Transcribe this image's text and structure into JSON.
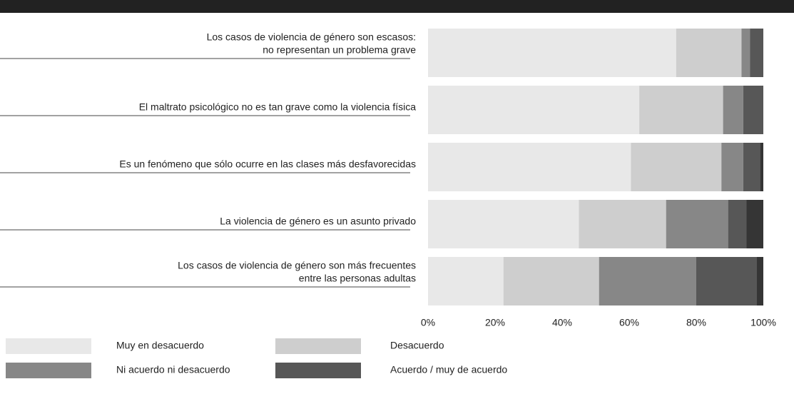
{
  "chart_data": {
    "type": "stacked_bar_horizontal",
    "categories": [
      [
        "Los casos de violencia de género son escasos:",
        "no representan un problema grave"
      ],
      [
        "El maltrato psicológico no es tan grave como la violencia física"
      ],
      [
        "Es un fenómeno que sólo ocurre en las clases más desfavorecidas"
      ],
      [
        "La violencia de género es un asunto privado"
      ],
      [
        "Los casos de violencia de género son más frecuentes",
        "entre las personas adultas"
      ]
    ],
    "series": [
      {
        "name": "Muy en desacuerdo",
        "color": "#e8e8e8",
        "values": [
          74,
          63,
          60.5,
          45,
          22.5
        ]
      },
      {
        "name": "Desacuerdo",
        "color": "#cecece",
        "values": [
          19.5,
          25,
          27,
          26,
          28.5
        ]
      },
      {
        "name": "Ni acuerdo ni desacuerdo",
        "color": "#878787",
        "values": [
          2.5,
          6,
          6.5,
          18.5,
          29
        ]
      },
      {
        "name": "Acuerdo / muy de acuerdo",
        "color": "#575757",
        "values": [
          4,
          6,
          5,
          5.5,
          18
        ]
      },
      {
        "color": "#353535",
        "values": [
          0,
          0,
          1,
          5,
          2
        ]
      }
    ],
    "xlim": [
      0,
      100
    ],
    "xticks": [
      {
        "value": 0,
        "label": "0%"
      },
      {
        "value": 20,
        "label": "20%"
      },
      {
        "value": 40,
        "label": "40%"
      },
      {
        "value": 60,
        "label": "60%"
      },
      {
        "value": 80,
        "label": "80%"
      },
      {
        "value": 100,
        "label": "100%"
      }
    ]
  }
}
